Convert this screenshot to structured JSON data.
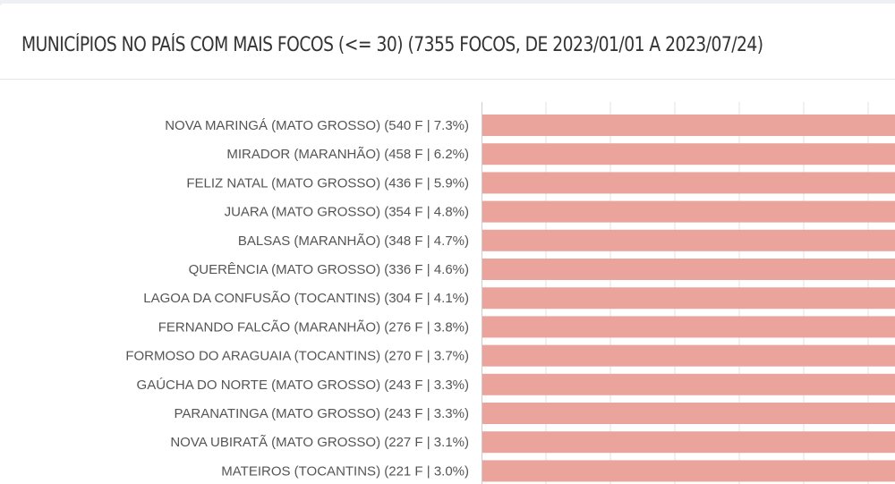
{
  "header": {
    "title": "MUNICÍPIOS NO PAÍS COM MAIS FOCOS (<= 30) (7355 FOCOS, DE 2023/01/01 A 2023/07/24)"
  },
  "chart_data": {
    "type": "bar",
    "orientation": "horizontal",
    "title": "MUNICÍPIOS NO PAÍS COM MAIS FOCOS (<= 30) (7355 FOCOS, DE 2023/01/01 A 2023/07/24)",
    "categories": [
      "NOVA MARINGÁ (MATO GROSSO) (540 F | 7.3%)",
      "MIRADOR (MARANHÃO) (458 F | 6.2%)",
      "FELIZ NATAL (MATO GROSSO) (436 F | 5.9%)",
      "JUARA (MATO GROSSO) (354 F | 4.8%)",
      "BALSAS (MARANHÃO) (348 F | 4.7%)",
      "QUERÊNCIA (MATO GROSSO) (336 F | 4.6%)",
      "LAGOA DA CONFUSÃO (TOCANTINS) (304 F | 4.1%)",
      "FERNANDO FALCÃO (MARANHÃO) (276 F | 3.8%)",
      "FORMOSO DO ARAGUAIA (TOCANTINS) (270 F | 3.7%)",
      "GAÚCHA DO NORTE (MATO GROSSO) (243 F | 3.3%)",
      "PARANATINGA (MATO GROSSO) (243 F | 3.3%)",
      "NOVA UBIRATÃ (MATO GROSSO) (227 F | 3.1%)",
      "MATEIROS (TOCANTINS) (221 F | 3.0%)"
    ],
    "values": [
      540,
      458,
      436,
      354,
      348,
      336,
      304,
      276,
      270,
      243,
      243,
      227,
      221
    ],
    "xlim": [
      0,
      75
    ],
    "grid": true,
    "bar_color": "#eba49c",
    "grid_color": "#e0e0e0"
  }
}
